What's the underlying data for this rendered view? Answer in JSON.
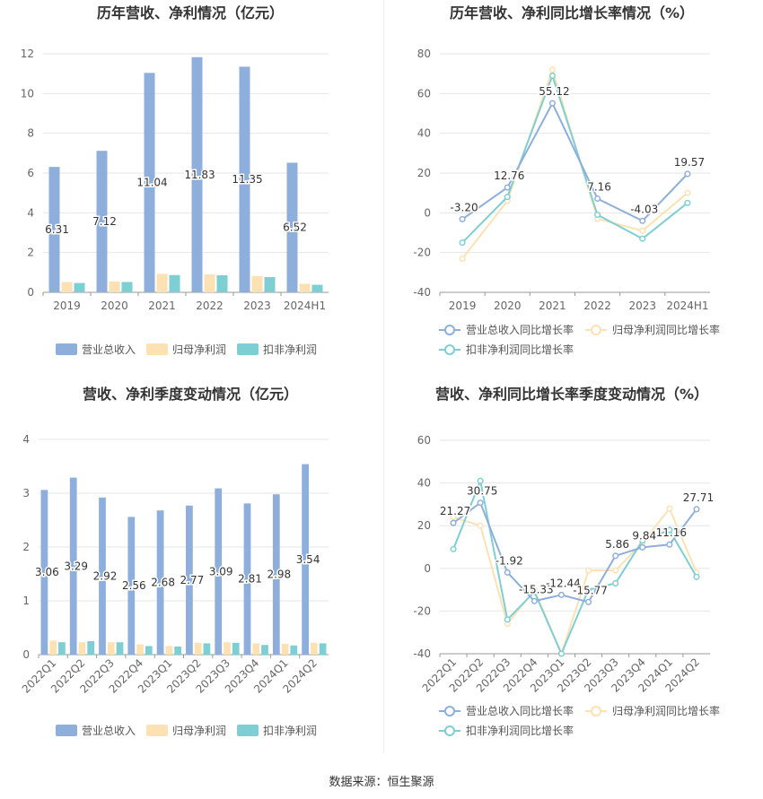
{
  "source": {
    "label": "数据来源：",
    "name": "恒生聚源"
  },
  "chart_data": [
    {
      "type": "bar",
      "title": "历年营收、净利情况（亿元）",
      "categories": [
        "2019",
        "2020",
        "2021",
        "2022",
        "2023",
        "2024H1"
      ],
      "ylim": [
        0,
        12
      ],
      "yticks": [
        0,
        2,
        4,
        6,
        8,
        10,
        12
      ],
      "series": [
        {
          "name": "营业总收入",
          "values": [
            6.31,
            7.12,
            11.04,
            11.83,
            11.35,
            6.52
          ],
          "color": "#8eafdc",
          "labeled": true
        },
        {
          "name": "归母净利润",
          "values": [
            0.52,
            0.55,
            0.93,
            0.9,
            0.82,
            0.43
          ],
          "color": "#fce2b2"
        },
        {
          "name": "扣非净利润",
          "values": [
            0.47,
            0.52,
            0.87,
            0.86,
            0.77,
            0.38
          ],
          "color": "#7ecfd4"
        }
      ],
      "legend": "bottom",
      "grid": true
    },
    {
      "type": "line",
      "title": "历年营收、净利同比增长率情况（%）",
      "categories": [
        "2019",
        "2020",
        "2021",
        "2022",
        "2023",
        "2024H1"
      ],
      "ylim": [
        -40,
        80
      ],
      "yticks": [
        -40,
        -20,
        0,
        20,
        40,
        60,
        80
      ],
      "series": [
        {
          "name": "营业总收入同比增长率",
          "values": [
            -3.2,
            12.76,
            55.12,
            7.16,
            -4.03,
            19.57
          ],
          "color": "#8eafdc",
          "labeled": true
        },
        {
          "name": "归母净利润同比增长率",
          "values": [
            -23,
            6,
            72,
            -3,
            -9,
            10
          ],
          "color": "#fce2b2"
        },
        {
          "name": "扣非净利润同比增长率",
          "values": [
            -15,
            8,
            69,
            -1,
            -13,
            5
          ],
          "color": "#7ecfd4"
        }
      ],
      "legend": "bottom",
      "grid": true
    },
    {
      "type": "bar",
      "title": "营收、净利季度变动情况（亿元）",
      "categories": [
        "2022Q1",
        "2022Q2",
        "2022Q3",
        "2022Q4",
        "2023Q1",
        "2023Q2",
        "2023Q3",
        "2023Q4",
        "2024Q1",
        "2024Q2"
      ],
      "ylim": [
        0,
        4
      ],
      "yticks": [
        0,
        1,
        2,
        3,
        4
      ],
      "series": [
        {
          "name": "营业总收入",
          "values": [
            3.06,
            3.29,
            2.92,
            2.56,
            2.68,
            2.77,
            3.09,
            2.81,
            2.98,
            3.54
          ],
          "color": "#8eafdc",
          "labeled": true
        },
        {
          "name": "归母净利润",
          "values": [
            0.26,
            0.23,
            0.23,
            0.19,
            0.16,
            0.22,
            0.23,
            0.21,
            0.2,
            0.22
          ],
          "color": "#fce2b2"
        },
        {
          "name": "扣非净利润",
          "values": [
            0.23,
            0.25,
            0.23,
            0.16,
            0.15,
            0.21,
            0.22,
            0.18,
            0.17,
            0.21
          ],
          "color": "#7ecfd4"
        }
      ],
      "legend": "bottom",
      "grid": true
    },
    {
      "type": "line",
      "title": "营收、净利同比增长率季度变动情况（%）",
      "categories": [
        "2022Q1",
        "2022Q2",
        "2022Q3",
        "2022Q4",
        "2023Q1",
        "2023Q2",
        "2023Q3",
        "2023Q4",
        "2024Q1",
        "2024Q2"
      ],
      "ylim": [
        -40,
        60
      ],
      "yticks": [
        -40,
        -20,
        0,
        20,
        40,
        60
      ],
      "series": [
        {
          "name": "营业总收入同比增长率",
          "values": [
            21.27,
            30.75,
            -1.92,
            -15.33,
            -12.44,
            -15.77,
            5.86,
            9.84,
            11.16,
            27.71
          ],
          "color": "#8eafdc",
          "labeled": true
        },
        {
          "name": "归母净利润同比增长率",
          "values": [
            24,
            20,
            -26,
            -10,
            -40,
            -1,
            -1,
            12,
            28,
            -2
          ],
          "color": "#fce2b2"
        },
        {
          "name": "扣非净利润同比增长率",
          "values": [
            9,
            41,
            -24,
            -11,
            -40,
            -10,
            -7,
            13,
            18,
            -4
          ],
          "color": "#7ecfd4"
        }
      ],
      "legend": "bottom",
      "grid": true
    }
  ]
}
